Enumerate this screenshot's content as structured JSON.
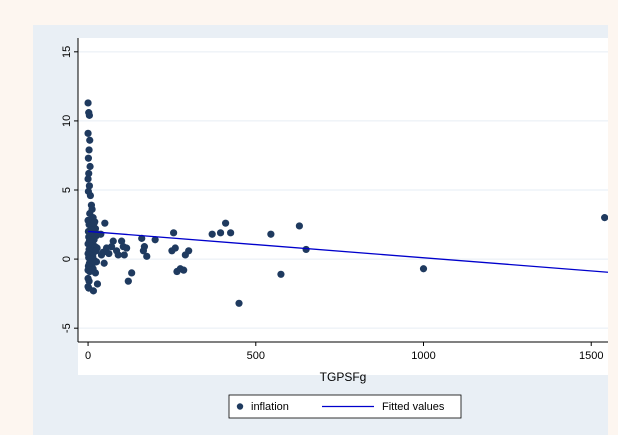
{
  "chart_data": {
    "type": "scatter",
    "title": "",
    "xlabel": "TGPSFg",
    "ylabel": "",
    "xlim": [
      -30,
      1550
    ],
    "ylim": [
      -6,
      16
    ],
    "xticks": [
      0,
      500,
      1000,
      1500
    ],
    "xtick_labels": [
      "0",
      "500",
      "1000",
      "1500"
    ],
    "yticks": [
      -5,
      0,
      5,
      10,
      15
    ],
    "ytick_labels": [
      "-5",
      "0",
      "5",
      "10",
      "15"
    ],
    "grid": "horizontal",
    "legend_position": "bottom",
    "colors": {
      "points": "#1f3a5f",
      "fit_line": "#0000cc",
      "plot_bg": "#ffffff",
      "graph_bg": "#e9eff5",
      "grid": "#e6eef4"
    },
    "series": [
      {
        "name": "inflation",
        "kind": "scatter",
        "points": [
          [
            0,
            11.3
          ],
          [
            2,
            10.6
          ],
          [
            4,
            10.4
          ],
          [
            0,
            9.1
          ],
          [
            5,
            8.6
          ],
          [
            3,
            7.9
          ],
          [
            1,
            7.3
          ],
          [
            6,
            6.7
          ],
          [
            2,
            6.2
          ],
          [
            0,
            5.8
          ],
          [
            4,
            5.3
          ],
          [
            1,
            4.9
          ],
          [
            7,
            4.6
          ],
          [
            10,
            3.9
          ],
          [
            12,
            3.6
          ],
          [
            5,
            3.3
          ],
          [
            15,
            3.0
          ],
          [
            0,
            2.8
          ],
          [
            20,
            2.7
          ],
          [
            3,
            2.5
          ],
          [
            8,
            2.4
          ],
          [
            22,
            2.2
          ],
          [
            12,
            2.1
          ],
          [
            1,
            2.0
          ],
          [
            6,
            1.9
          ],
          [
            16,
            1.8
          ],
          [
            25,
            1.7
          ],
          [
            30,
            1.8
          ],
          [
            2,
            1.6
          ],
          [
            9,
            1.5
          ],
          [
            18,
            1.4
          ],
          [
            4,
            1.3
          ],
          [
            13,
            1.2
          ],
          [
            0,
            1.1
          ],
          [
            7,
            1.0
          ],
          [
            21,
            0.9
          ],
          [
            27,
            0.8
          ],
          [
            3,
            0.7
          ],
          [
            11,
            0.6
          ],
          [
            17,
            0.5
          ],
          [
            0,
            0.4
          ],
          [
            6,
            0.3
          ],
          [
            14,
            0.2
          ],
          [
            2,
            0.1
          ],
          [
            9,
            0.0
          ],
          [
            19,
            -0.1
          ],
          [
            25,
            -0.2
          ],
          [
            4,
            -0.3
          ],
          [
            12,
            -0.4
          ],
          [
            1,
            -0.5
          ],
          [
            8,
            -0.6
          ],
          [
            15,
            -0.7
          ],
          [
            0,
            -0.8
          ],
          [
            5,
            -0.9
          ],
          [
            22,
            -1.0
          ],
          [
            0,
            -1.4
          ],
          [
            3,
            -1.6
          ],
          [
            28,
            -1.8
          ],
          [
            2,
            -2.1
          ],
          [
            16,
            -2.3
          ],
          [
            0,
            -2.0
          ],
          [
            10,
            -0.8
          ],
          [
            24,
            0.6
          ],
          [
            6,
            1.4
          ],
          [
            18,
            2.6
          ],
          [
            40,
            0.3
          ],
          [
            45,
            0.5
          ],
          [
            38,
            1.8
          ],
          [
            50,
            2.6
          ],
          [
            48,
            -0.3
          ],
          [
            55,
            0.8
          ],
          [
            62,
            0.4
          ],
          [
            70,
            0.9
          ],
          [
            75,
            1.3
          ],
          [
            85,
            0.6
          ],
          [
            90,
            0.3
          ],
          [
            100,
            1.3
          ],
          [
            105,
            0.9
          ],
          [
            108,
            0.3
          ],
          [
            115,
            0.8
          ],
          [
            120,
            -1.6
          ],
          [
            130,
            -1.0
          ],
          [
            160,
            1.5
          ],
          [
            165,
            0.6
          ],
          [
            168,
            0.9
          ],
          [
            175,
            0.2
          ],
          [
            200,
            1.4
          ],
          [
            250,
            0.6
          ],
          [
            255,
            1.9
          ],
          [
            260,
            0.8
          ],
          [
            265,
            -0.9
          ],
          [
            275,
            -0.7
          ],
          [
            285,
            -0.8
          ],
          [
            290,
            0.3
          ],
          [
            300,
            0.6
          ],
          [
            370,
            1.8
          ],
          [
            395,
            1.9
          ],
          [
            410,
            2.6
          ],
          [
            425,
            1.9
          ],
          [
            450,
            -3.2
          ],
          [
            545,
            1.8
          ],
          [
            575,
            -1.1
          ],
          [
            630,
            2.4
          ],
          [
            650,
            0.7
          ],
          [
            1000,
            -0.7
          ],
          [
            1540,
            3.0
          ]
        ]
      },
      {
        "name": "Fitted values",
        "kind": "line",
        "points": [
          [
            0,
            2.0
          ],
          [
            1550,
            -0.95
          ]
        ]
      }
    ]
  }
}
